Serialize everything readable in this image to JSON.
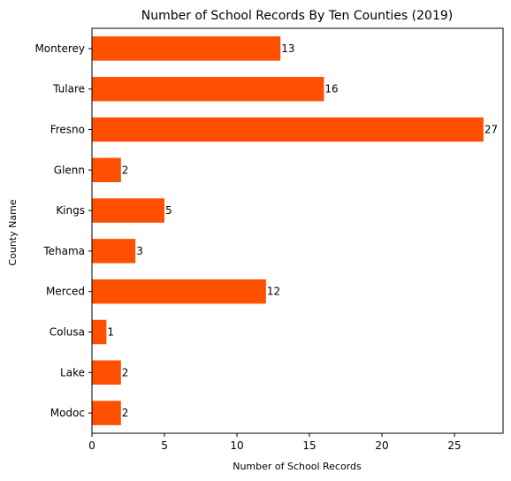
{
  "chart_data": {
    "type": "bar",
    "orientation": "horizontal",
    "title": "Number of School Records By Ten Counties (2019)",
    "xlabel": "Number of School Records",
    "ylabel": "County Name",
    "categories": [
      "Monterey",
      "Tulare",
      "Fresno",
      "Glenn",
      "Kings",
      "Tehama",
      "Merced",
      "Colusa",
      "Lake",
      "Modoc"
    ],
    "values": [
      13,
      16,
      27,
      2,
      5,
      3,
      12,
      1,
      2,
      2
    ],
    "data_labels": [
      "13",
      "16",
      "27",
      "2",
      "5",
      "3",
      "12",
      "1",
      "2",
      "2"
    ],
    "xlim": [
      0,
      28.35
    ],
    "xticks": [
      0,
      5,
      10,
      15,
      20,
      25
    ],
    "xtick_labels": [
      "0",
      "5",
      "10",
      "15",
      "20",
      "25"
    ],
    "bar_color": "#ff4f00",
    "grid": false,
    "legend": false
  }
}
